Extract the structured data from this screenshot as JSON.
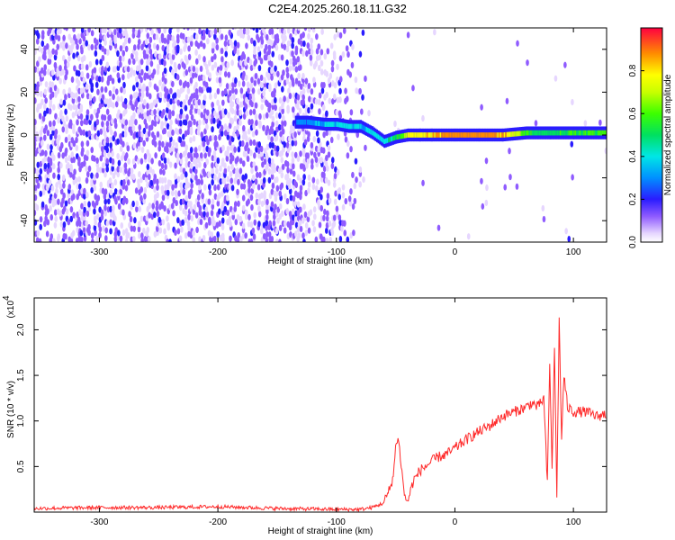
{
  "title": "C2E4.2025.260.18.11.G32",
  "chart_data": [
    {
      "type": "heatmap",
      "xlabel": "Height of straight line (km)",
      "ylabel": "Frequency (Hz)",
      "xlim": [
        -355,
        128
      ],
      "ylim": [
        -50,
        50
      ],
      "xticks": [
        -300,
        -200,
        -100,
        0,
        100
      ],
      "yticks": [
        -40,
        -20,
        0,
        20,
        40
      ],
      "colorbar": {
        "label": "Normalized spectral amplitude",
        "range": [
          0,
          1
        ],
        "ticks": [
          0.0,
          0.2,
          0.4,
          0.6,
          0.8
        ]
      },
      "ridge": {
        "x": [
          -135,
          -125,
          -110,
          -100,
          -90,
          -80,
          -70,
          -60,
          -50,
          -40,
          -30,
          -20,
          0,
          20,
          40,
          60,
          80,
          100,
          128
        ],
        "frequency": [
          6,
          6,
          5,
          5,
          4,
          4,
          1,
          -3,
          -1,
          0,
          0,
          0,
          0,
          0,
          0,
          1,
          1,
          1,
          1
        ],
        "amplitude": [
          0.3,
          0.35,
          0.4,
          0.45,
          0.45,
          0.4,
          0.45,
          0.45,
          0.55,
          0.8,
          0.85,
          0.9,
          0.95,
          0.95,
          0.9,
          0.6,
          0.55,
          0.6,
          0.65
        ]
      },
      "noise_region_x": [
        -355,
        -75
      ]
    },
    {
      "type": "line",
      "xlabel": "Height of straight line (km)",
      "ylabel": "SNR (10 * v/v)",
      "y_multiplier": "(x10",
      "y_multiplier_exp": "4",
      "xlim": [
        -355,
        128
      ],
      "ylim": [
        0,
        2.35
      ],
      "xticks": [
        -300,
        -200,
        -100,
        0,
        100
      ],
      "yticks": [
        0.5,
        1.0,
        1.5,
        2.0
      ],
      "series": [
        {
          "color": "#ff2a2a",
          "x": [
            -355,
            -300,
            -250,
            -200,
            -150,
            -100,
            -80,
            -70,
            -60,
            -55,
            -52,
            -50,
            -48,
            -46,
            -44,
            -42,
            -40,
            -38,
            -35,
            -32,
            -30,
            -25,
            -20,
            -15,
            -10,
            -5,
            0,
            10,
            20,
            30,
            40,
            50,
            60,
            65,
            70,
            75,
            78,
            80,
            82,
            84,
            86,
            88,
            90,
            92,
            95,
            100,
            110,
            120,
            128
          ],
          "y": [
            0.04,
            0.05,
            0.05,
            0.06,
            0.04,
            0.03,
            0.03,
            0.05,
            0.1,
            0.25,
            0.4,
            0.7,
            0.85,
            0.6,
            0.35,
            0.15,
            0.12,
            0.2,
            0.35,
            0.4,
            0.45,
            0.5,
            0.55,
            0.6,
            0.62,
            0.65,
            0.7,
            0.8,
            0.88,
            0.95,
            1.05,
            1.1,
            1.15,
            1.2,
            1.15,
            1.25,
            0.3,
            1.6,
            0.5,
            1.8,
            0.2,
            2.1,
            0.8,
            1.5,
            1.15,
            1.1,
            1.1,
            1.05,
            1.08
          ]
        }
      ]
    }
  ]
}
